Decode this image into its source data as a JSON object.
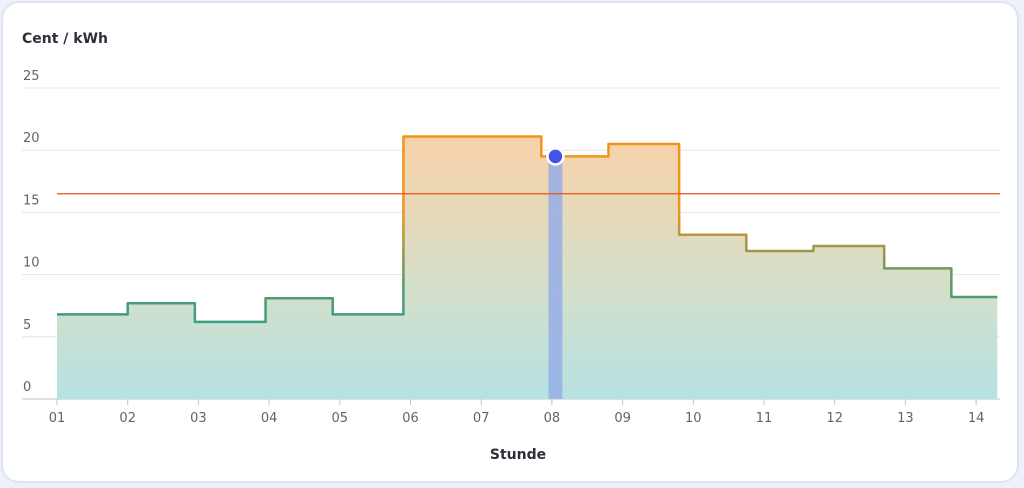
{
  "chart_data": {
    "type": "line",
    "step": true,
    "ylabel": "Cent / kWh",
    "xlabel": "Stunde",
    "ylim": [
      0,
      25
    ],
    "yticks": [
      "0",
      "5",
      "10",
      "15",
      "20",
      "25"
    ],
    "xticks": [
      "01",
      "02",
      "03",
      "04",
      "05",
      "06",
      "07",
      "08",
      "09",
      "10",
      "11",
      "12",
      "13",
      "14"
    ],
    "grid": true,
    "steps": [
      {
        "x_from": 1.0,
        "x_to": 2.0,
        "value": 6.8
      },
      {
        "x_from": 2.0,
        "x_to": 2.95,
        "value": 7.7
      },
      {
        "x_from": 2.95,
        "x_to": 3.95,
        "value": 6.2
      },
      {
        "x_from": 3.95,
        "x_to": 4.9,
        "value": 8.1
      },
      {
        "x_from": 4.9,
        "x_to": 5.9,
        "value": 6.8
      },
      {
        "x_from": 5.9,
        "x_to": 7.85,
        "value": 21.1
      },
      {
        "x_from": 7.85,
        "x_to": 8.8,
        "value": 19.5
      },
      {
        "x_from": 8.8,
        "x_to": 9.8,
        "value": 20.5
      },
      {
        "x_from": 9.8,
        "x_to": 10.75,
        "value": 13.2
      },
      {
        "x_from": 10.75,
        "x_to": 11.7,
        "value": 11.9
      },
      {
        "x_from": 11.7,
        "x_to": 12.7,
        "value": 12.3
      },
      {
        "x_from": 12.7,
        "x_to": 13.65,
        "value": 10.5
      },
      {
        "x_from": 13.65,
        "x_to": 14.3,
        "value": 8.2
      }
    ],
    "reference_line": {
      "value": 16.5,
      "color": "#e8531e"
    },
    "highlight": {
      "x": 8.05,
      "value": 19.5,
      "marker_color": "#4255e6",
      "band_color": "#97aee8"
    },
    "colors": {
      "low": "#20a29b",
      "mid": "#5c9a6a",
      "high": "#f0951c",
      "fill_low": "#b6e2e2",
      "fill_high": "#f9d2a8"
    }
  }
}
